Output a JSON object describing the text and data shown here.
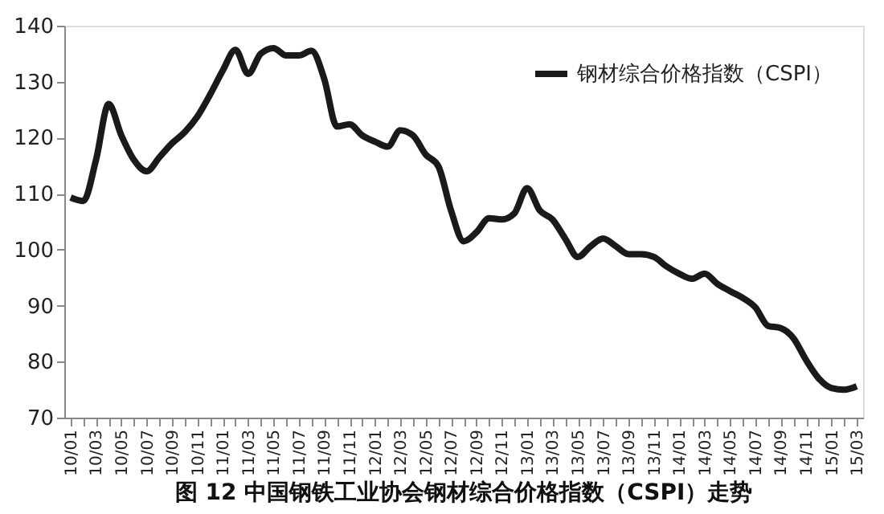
{
  "chart_data": {
    "type": "line",
    "title": "图 12 中国钢铁工业协会钢材综合价格指数（CSPI）走势",
    "categories": [
      "10/01",
      null,
      "10/03",
      null,
      "10/05",
      null,
      "10/07",
      null,
      "10/09",
      null,
      "10/11",
      null,
      "11/01",
      null,
      "11/03",
      null,
      "11/05",
      null,
      "11/07",
      null,
      "11/09",
      null,
      "11/11",
      null,
      "12/01",
      null,
      "12/03",
      null,
      "12/05",
      null,
      "12/07",
      null,
      "12/09",
      null,
      "12/11",
      null,
      "13/01",
      null,
      "13/03",
      null,
      "13/05",
      null,
      "13/07",
      null,
      "13/09",
      null,
      "13/11",
      null,
      "14/01",
      null,
      "14/03",
      null,
      "14/05",
      null,
      "14/07",
      null,
      "14/09",
      null,
      "14/11",
      null,
      "15/01",
      null,
      "15/03"
    ],
    "series": [
      {
        "name": "钢材综合价格指数（CSPI）",
        "color": "#1a1a1a",
        "values": [
          109.3,
          108.7,
          116,
          126,
          120.4,
          116,
          114,
          116.5,
          119,
          121,
          123.8,
          127.7,
          132,
          135.7,
          131.4,
          135,
          136,
          134.7,
          134.7,
          135.5,
          130.5,
          122,
          122.4,
          120.4,
          119.3,
          118.4,
          121.3,
          120.4,
          117,
          114.9,
          107,
          101.5,
          103.1,
          105.6,
          105.4,
          106.5,
          111,
          107,
          105.4,
          102,
          98.7,
          100.6,
          102,
          100.6,
          99.2,
          99.2,
          98.7,
          97,
          95.7,
          94.8,
          95.7,
          93.9,
          92.6,
          91.4,
          89.7,
          86.4,
          86,
          84.2,
          80.3,
          77,
          75.3,
          75,
          75.6
        ]
      }
    ],
    "ylim": [
      70,
      140
    ],
    "yticks": [
      70,
      80,
      90,
      100,
      110,
      120,
      130,
      140
    ],
    "grid": false,
    "legend": "top right",
    "marker": "none",
    "line_style": "solid"
  }
}
